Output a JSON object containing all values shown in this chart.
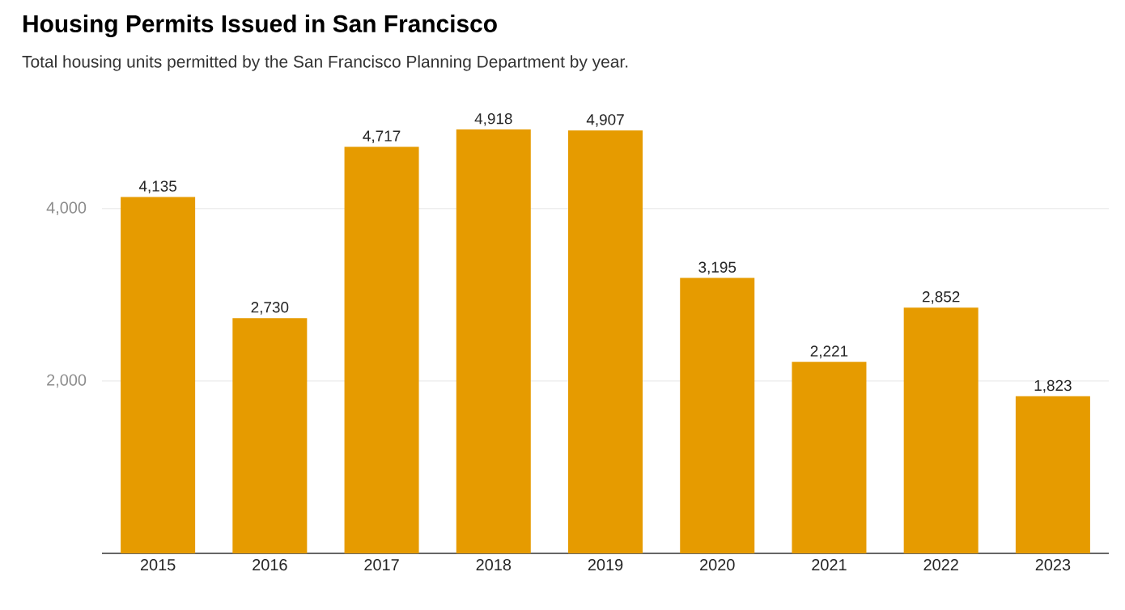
{
  "chart_data": {
    "type": "bar",
    "title": "Housing Permits Issued in San Francisco",
    "subtitle": "Total housing units permitted by the San Francisco Planning Department by year.",
    "categories": [
      "2015",
      "2016",
      "2017",
      "2018",
      "2019",
      "2020",
      "2021",
      "2022",
      "2023"
    ],
    "values": [
      4135,
      2730,
      4717,
      4918,
      4907,
      3195,
      2221,
      2852,
      1823
    ],
    "value_labels": [
      "4,135",
      "2,730",
      "4,717",
      "4,918",
      "4,907",
      "3,195",
      "2,221",
      "2,852",
      "1,823"
    ],
    "color": "#e69b00",
    "ylim": [
      0,
      4918
    ],
    "yticks": [
      {
        "value": 2000,
        "label": "2,000"
      },
      {
        "value": 4000,
        "label": "4,000"
      }
    ],
    "grid": "y"
  }
}
